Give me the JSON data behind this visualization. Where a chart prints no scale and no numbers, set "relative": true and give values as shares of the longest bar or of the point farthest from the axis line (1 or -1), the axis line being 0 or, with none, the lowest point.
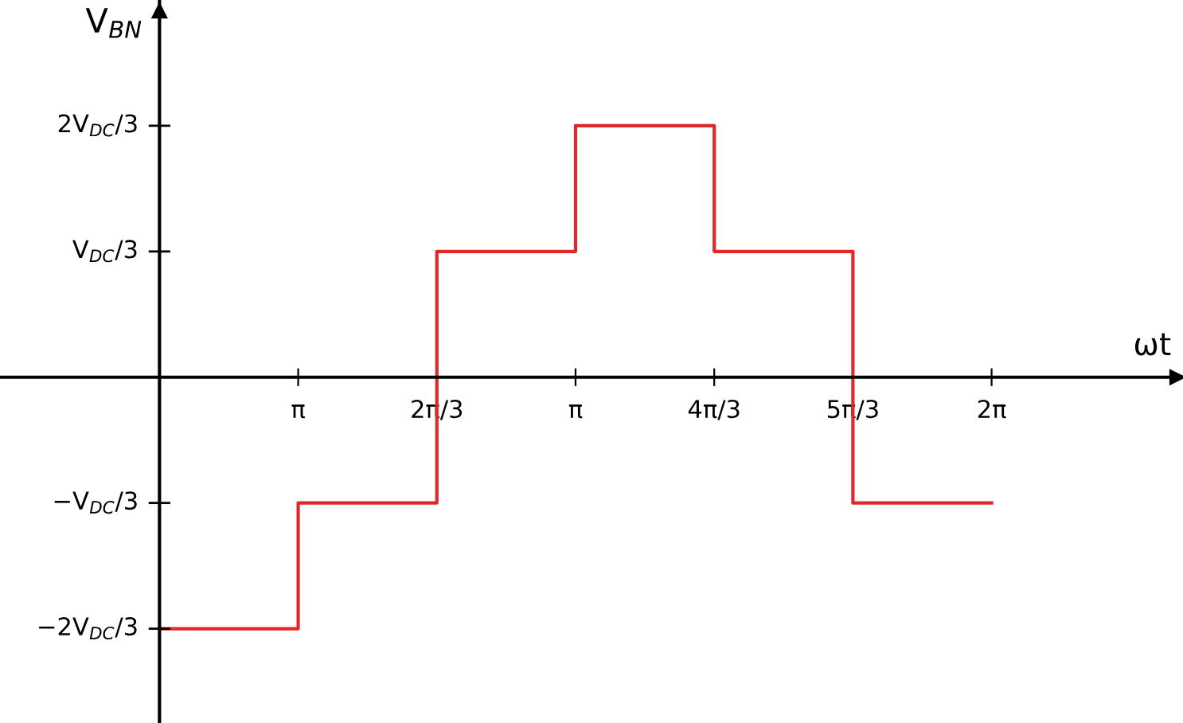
{
  "chart_data": {
    "type": "step",
    "xlabel": "ωt",
    "ylabel": "V$_{BN}$",
    "relative": true,
    "categories": [
      null,
      "π",
      "2π/3",
      "π",
      "4π/3",
      "5π/3",
      "2π"
    ],
    "series": [
      {
        "color": "#e0282a",
        "values": [
          -1,
          -0.5,
          0.5,
          1,
          0.5,
          -0.5,
          -0.5
        ]
      }
    ],
    "annotations": [
      "−2V$_{DC}$/3",
      "−V$_{DC}$/3",
      "V$_{DC}$/3",
      "2V$_{DC}$/3"
    ]
  }
}
